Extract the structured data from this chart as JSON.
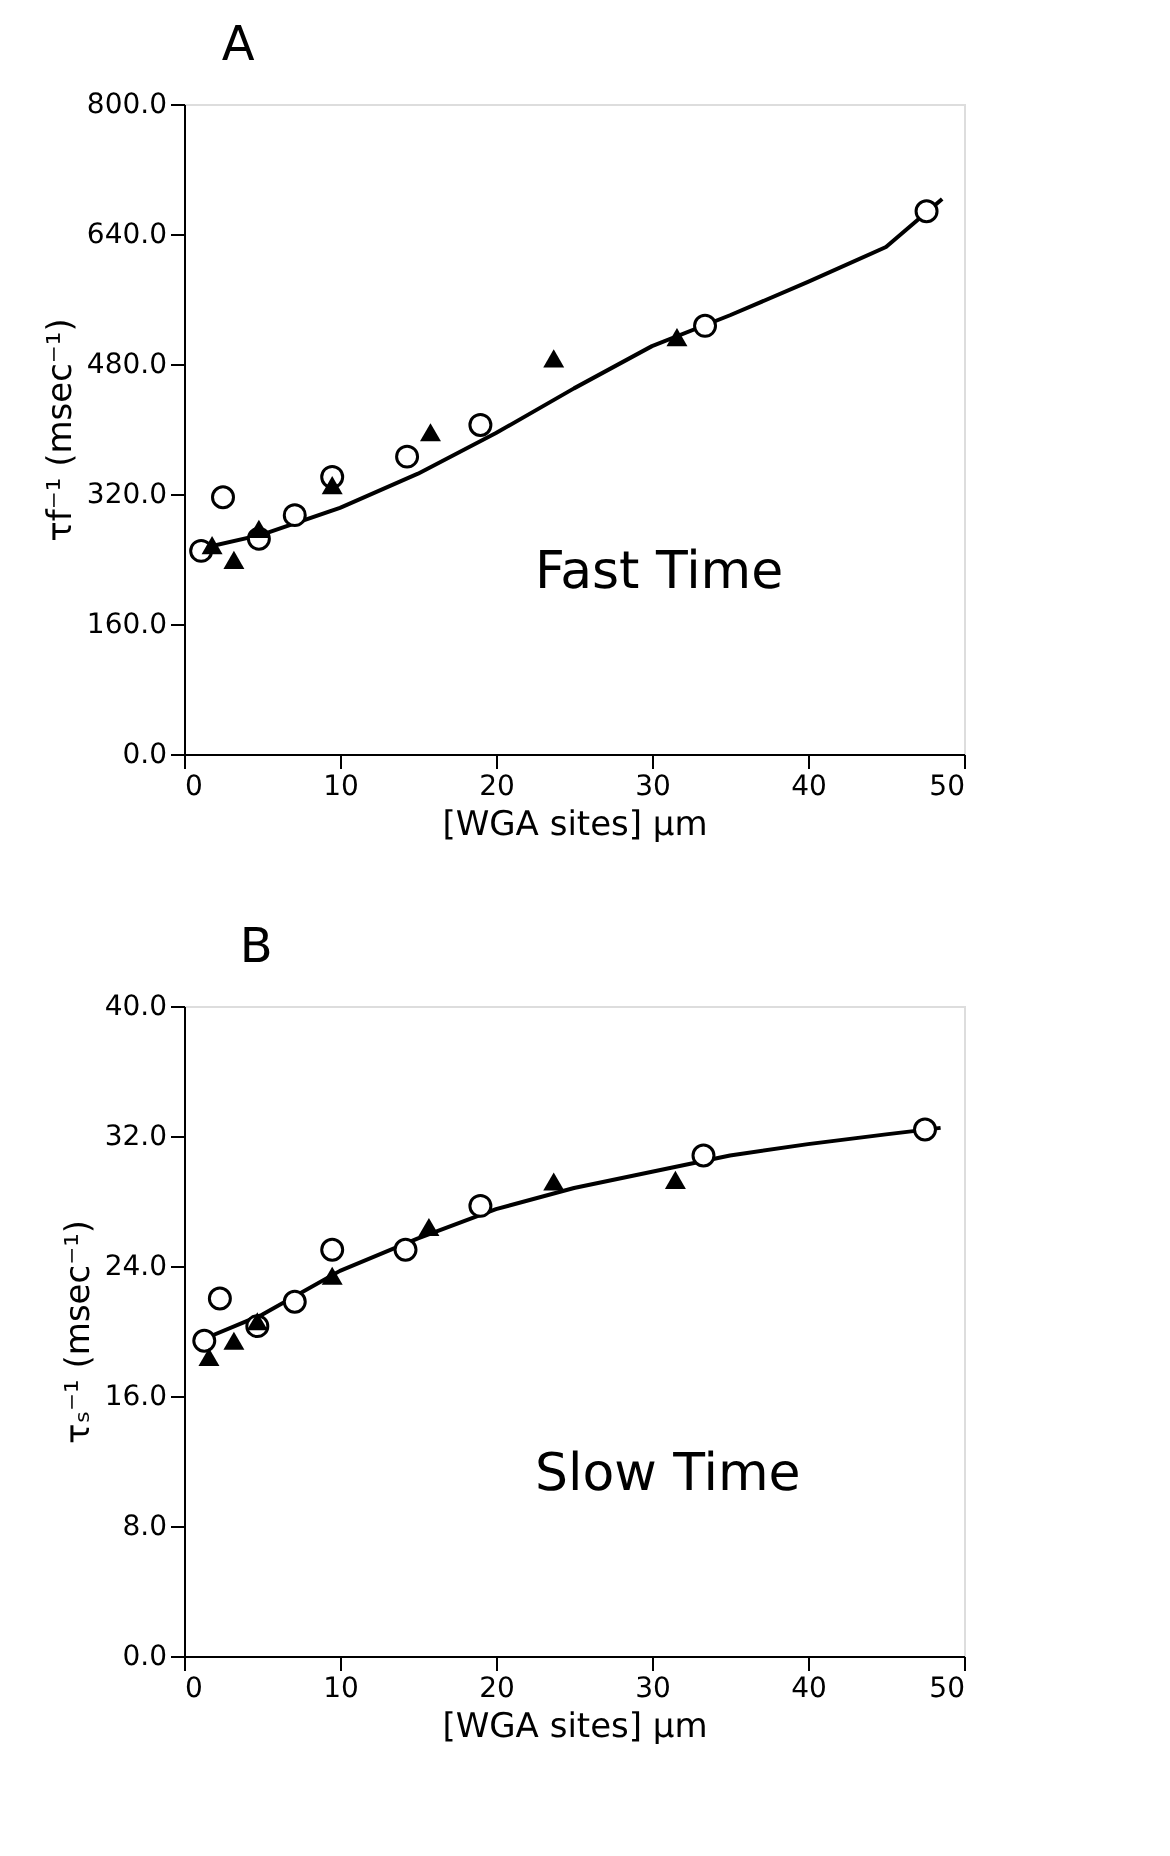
{
  "chart_data": [
    {
      "type": "scatter",
      "title": "A",
      "xlabel": "[WGA sites] μm",
      "ylabel": "τf⁻¹ (msec⁻¹)",
      "annotations": [
        "Fast Time"
      ],
      "xlim": [
        0,
        50
      ],
      "xticks": [
        0,
        10,
        20,
        30,
        40,
        50
      ],
      "ylim": [
        0,
        800
      ],
      "yticks": [
        {
          "value": 0,
          "label": "0.0"
        },
        {
          "value": 160,
          "label": "160.0"
        },
        {
          "value": 320,
          "label": "320.0"
        },
        {
          "value": 480,
          "label": "480.0"
        },
        {
          "value": 640,
          "label": "640.0"
        },
        {
          "value": 800,
          "label": "800.0"
        }
      ],
      "grid": false,
      "series": [
        {
          "type": "line",
          "color": "#000000",
          "marker": "none",
          "line_style": "solid",
          "x": [
            1.1,
            5,
            10,
            15,
            20,
            25,
            30,
            35,
            40,
            45,
            48.6
          ],
          "values": [
            253,
            270,
            303,
            345,
            395,
            450,
            502,
            540,
            581,
            624,
            683
          ]
        },
        {
          "color": "#000000",
          "marker": "circle",
          "x": [
            1.1,
            2.5,
            4.8,
            7.1,
            9.5,
            14.3,
            19.0,
            33.4,
            47.6
          ],
          "values": [
            250,
            316,
            265,
            294,
            341,
            366,
            405,
            527,
            668
          ]
        },
        {
          "color": "#000000",
          "marker": "triangle",
          "x": [
            1.8,
            3.2,
            4.8,
            9.5,
            15.8,
            23.7,
            31.6
          ],
          "values": [
            257,
            239,
            277,
            331,
            396,
            487,
            513
          ]
        }
      ]
    },
    {
      "type": "scatter",
      "title": "B",
      "xlabel": "[WGA sites] μm",
      "ylabel": "τₛ⁻¹ (msec⁻¹)",
      "annotations": [
        "Slow Time"
      ],
      "xlim": [
        0,
        50
      ],
      "xticks": [
        0,
        10,
        20,
        30,
        40,
        50
      ],
      "ylim": [
        0,
        40
      ],
      "yticks": [
        {
          "value": 0,
          "label": "0.0"
        },
        {
          "value": 8,
          "label": "8.0"
        },
        {
          "value": 16,
          "label": "16.0"
        },
        {
          "value": 24,
          "label": "24.0"
        },
        {
          "value": 32,
          "label": "32.0"
        },
        {
          "value": 40,
          "label": "40.0"
        }
      ],
      "grid": false,
      "series": [
        {
          "type": "line",
          "color": "#000000",
          "marker": "none",
          "line_style": "solid",
          "x": [
            1.5,
            5,
            10,
            15,
            20,
            25,
            30,
            35,
            40,
            45,
            48.5
          ],
          "values": [
            19.6,
            21.0,
            23.7,
            25.7,
            27.5,
            28.8,
            29.8,
            30.8,
            31.5,
            32.1,
            32.5
          ]
        },
        {
          "color": "#000000",
          "marker": "circle",
          "x": [
            1.3,
            2.3,
            4.7,
            7.1,
            9.5,
            14.2,
            19.0,
            33.3,
            47.5
          ],
          "values": [
            19.4,
            22.0,
            20.3,
            21.8,
            25.0,
            25.0,
            27.7,
            30.8,
            32.4
          ]
        },
        {
          "color": "#000000",
          "marker": "triangle",
          "x": [
            1.6,
            3.2,
            4.7,
            9.5,
            15.7,
            23.7,
            31.5
          ],
          "values": [
            18.4,
            19.4,
            20.6,
            23.4,
            26.4,
            29.2,
            29.3
          ]
        }
      ]
    }
  ]
}
